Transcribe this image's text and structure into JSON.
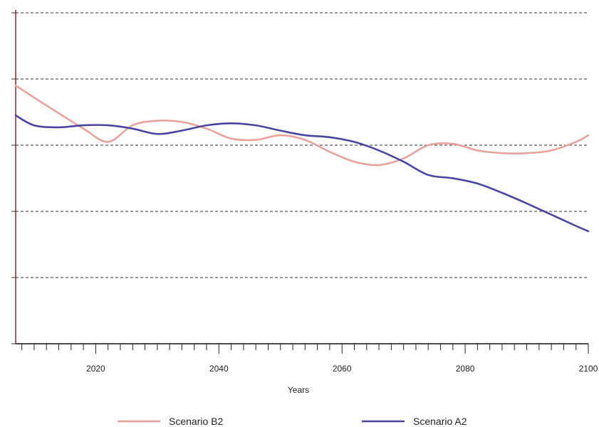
{
  "chart_data": {
    "type": "line",
    "xlabel": "Years",
    "x_ticks": [
      2020,
      2040,
      2060,
      2080,
      2100
    ],
    "xlim": [
      2007,
      2100
    ],
    "ylim": [
      0,
      5
    ],
    "grid": "horizontal-dashed",
    "legend_position": "bottom",
    "series": [
      {
        "name": "Scenario B2",
        "color": "#e8a29a",
        "x": [
          2007,
          2012,
          2018,
          2022,
          2026,
          2030,
          2034,
          2038,
          2042,
          2046,
          2050,
          2054,
          2058,
          2062,
          2066,
          2070,
          2074,
          2078,
          2082,
          2086,
          2090,
          2094,
          2098,
          2100
        ],
        "y": [
          3.9,
          3.6,
          3.25,
          3.05,
          3.3,
          3.37,
          3.35,
          3.25,
          3.1,
          3.08,
          3.15,
          3.08,
          2.9,
          2.75,
          2.7,
          2.8,
          3.0,
          3.02,
          2.92,
          2.88,
          2.88,
          2.92,
          3.05,
          3.15
        ]
      },
      {
        "name": "Scenario A2",
        "color": "#4a45a0",
        "x": [
          2007,
          2010,
          2014,
          2018,
          2022,
          2026,
          2030,
          2034,
          2038,
          2042,
          2046,
          2050,
          2054,
          2058,
          2062,
          2066,
          2070,
          2074,
          2078,
          2082,
          2086,
          2090,
          2094,
          2098,
          2100
        ],
        "y": [
          3.45,
          3.3,
          3.27,
          3.3,
          3.3,
          3.25,
          3.17,
          3.22,
          3.3,
          3.33,
          3.3,
          3.22,
          3.15,
          3.12,
          3.05,
          2.92,
          2.75,
          2.55,
          2.5,
          2.42,
          2.28,
          2.12,
          1.95,
          1.78,
          1.7
        ]
      }
    ]
  }
}
